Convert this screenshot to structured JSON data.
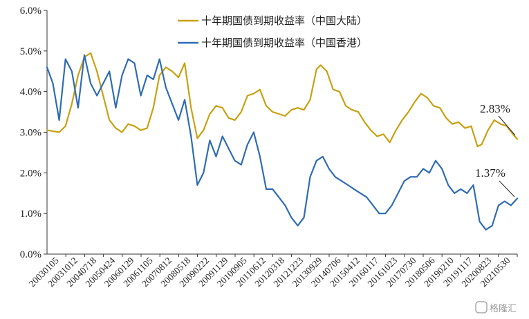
{
  "chart_data": {
    "type": "line",
    "ylim": [
      0,
      6
    ],
    "y_ticks": [
      "0.0%",
      "1.0%",
      "2.0%",
      "3.0%",
      "4.0%",
      "5.0%",
      "6.0%"
    ],
    "x_tick_labels": [
      "20030105",
      "20031012",
      "20040718",
      "20050424",
      "20060129",
      "20061105",
      "20070812",
      "20080518",
      "20090222",
      "20091129",
      "20100905",
      "20110612",
      "20120318",
      "20121223",
      "20130929",
      "20140706",
      "20150412",
      "20160117",
      "20161023",
      "20170730",
      "20180506",
      "20190210",
      "20191117",
      "20200823",
      "20210530"
    ],
    "legend_position": "top-center",
    "grid": false,
    "series": [
      {
        "name": "十年期国债到期收益率（中国大陆）",
        "color": "#C9A011",
        "x": [
          "2003-01-05",
          "2003-07-01",
          "2003-10-01",
          "2004-01-01",
          "2004-04-01",
          "2004-07-01",
          "2004-10-01",
          "2005-01-01",
          "2005-04-01",
          "2005-07-01",
          "2005-10-01",
          "2006-01-01",
          "2006-04-01",
          "2006-07-01",
          "2006-10-01",
          "2007-01-01",
          "2007-04-01",
          "2007-07-01",
          "2007-10-01",
          "2008-01-01",
          "2008-04-01",
          "2008-07-01",
          "2008-10-01",
          "2009-01-01",
          "2009-04-01",
          "2009-07-01",
          "2009-10-01",
          "2010-01-01",
          "2010-04-01",
          "2010-07-01",
          "2010-10-01",
          "2011-01-01",
          "2011-04-01",
          "2011-07-01",
          "2011-10-01",
          "2012-01-01",
          "2012-04-01",
          "2012-07-01",
          "2012-10-01",
          "2013-01-01",
          "2013-04-01",
          "2013-07-01",
          "2013-10-01",
          "2013-12-01",
          "2014-03-01",
          "2014-06-01",
          "2014-09-01",
          "2014-12-01",
          "2015-03-01",
          "2015-06-01",
          "2015-09-01",
          "2015-12-01",
          "2016-03-01",
          "2016-06-01",
          "2016-09-01",
          "2016-12-01",
          "2017-03-01",
          "2017-06-01",
          "2017-09-01",
          "2017-12-01",
          "2018-03-01",
          "2018-06-01",
          "2018-09-01",
          "2018-12-01",
          "2019-03-01",
          "2019-06-01",
          "2019-09-01",
          "2019-12-01",
          "2020-03-01",
          "2020-05-01",
          "2020-08-01",
          "2020-11-01",
          "2021-02-01",
          "2021-05-01",
          "2021-08-01",
          "2021-10-01"
        ],
        "values": [
          3.05,
          3.0,
          3.15,
          3.7,
          4.4,
          4.85,
          4.95,
          4.5,
          3.9,
          3.3,
          3.1,
          3.0,
          3.2,
          3.15,
          3.05,
          3.1,
          3.6,
          4.4,
          4.6,
          4.5,
          4.35,
          4.7,
          3.6,
          2.85,
          3.05,
          3.45,
          3.65,
          3.6,
          3.35,
          3.3,
          3.5,
          3.9,
          3.95,
          4.05,
          3.65,
          3.5,
          3.45,
          3.4,
          3.55,
          3.6,
          3.55,
          3.8,
          4.55,
          4.65,
          4.5,
          4.05,
          4.0,
          3.65,
          3.55,
          3.5,
          3.25,
          3.05,
          2.9,
          2.95,
          2.75,
          3.05,
          3.3,
          3.5,
          3.75,
          3.95,
          3.85,
          3.65,
          3.6,
          3.35,
          3.2,
          3.25,
          3.1,
          3.15,
          2.65,
          2.7,
          3.05,
          3.3,
          3.2,
          3.15,
          2.95,
          2.83
        ]
      },
      {
        "name": "十年期国债到期收益率（中国香港）",
        "color": "#2F6CB5",
        "x": [
          "2003-01-05",
          "2003-04-01",
          "2003-07-01",
          "2003-10-01",
          "2004-01-01",
          "2004-04-01",
          "2004-07-01",
          "2004-10-01",
          "2005-01-01",
          "2005-04-01",
          "2005-07-01",
          "2005-10-01",
          "2006-01-01",
          "2006-04-01",
          "2006-07-01",
          "2006-10-01",
          "2007-01-01",
          "2007-04-01",
          "2007-07-01",
          "2007-10-01",
          "2008-01-01",
          "2008-04-01",
          "2008-07-01",
          "2008-10-01",
          "2009-01-01",
          "2009-04-01",
          "2009-07-01",
          "2009-10-01",
          "2010-01-01",
          "2010-04-01",
          "2010-07-01",
          "2010-10-01",
          "2011-01-01",
          "2011-04-01",
          "2011-07-01",
          "2011-10-01",
          "2012-01-01",
          "2012-04-01",
          "2012-07-01",
          "2012-10-01",
          "2013-01-01",
          "2013-04-01",
          "2013-07-01",
          "2013-10-01",
          "2014-01-01",
          "2014-04-01",
          "2014-07-01",
          "2014-10-01",
          "2015-01-01",
          "2015-04-01",
          "2015-07-01",
          "2015-10-01",
          "2016-01-01",
          "2016-04-01",
          "2016-07-01",
          "2016-10-01",
          "2017-01-01",
          "2017-04-01",
          "2017-07-01",
          "2017-10-01",
          "2018-01-01",
          "2018-04-01",
          "2018-07-01",
          "2018-10-01",
          "2019-01-01",
          "2019-04-01",
          "2019-07-01",
          "2019-10-01",
          "2020-01-01",
          "2020-04-01",
          "2020-07-01",
          "2020-10-01",
          "2021-01-01",
          "2021-04-01",
          "2021-07-01",
          "2021-10-01"
        ],
        "values": [
          4.6,
          4.2,
          3.3,
          4.8,
          4.5,
          3.6,
          4.9,
          4.2,
          3.9,
          4.2,
          4.5,
          3.6,
          4.4,
          4.8,
          4.7,
          3.9,
          4.4,
          4.3,
          4.8,
          4.1,
          3.7,
          3.3,
          3.8,
          2.9,
          1.7,
          2.0,
          2.8,
          2.4,
          2.9,
          2.6,
          2.3,
          2.2,
          2.7,
          3.0,
          2.4,
          1.6,
          1.6,
          1.4,
          1.2,
          0.9,
          0.7,
          0.9,
          1.9,
          2.3,
          2.4,
          2.1,
          1.9,
          1.8,
          1.7,
          1.6,
          1.5,
          1.4,
          1.2,
          1.0,
          1.0,
          1.2,
          1.5,
          1.8,
          1.9,
          1.9,
          2.1,
          2.0,
          2.3,
          2.1,
          1.7,
          1.5,
          1.6,
          1.5,
          1.7,
          0.8,
          0.6,
          0.7,
          1.2,
          1.3,
          1.2,
          1.37
        ]
      }
    ],
    "annotations": [
      {
        "text": "2.83%",
        "series": 0,
        "value": 2.83
      },
      {
        "text": "1.37%",
        "series": 1,
        "value": 1.37
      }
    ]
  },
  "watermark": {
    "text": "格隆汇"
  }
}
